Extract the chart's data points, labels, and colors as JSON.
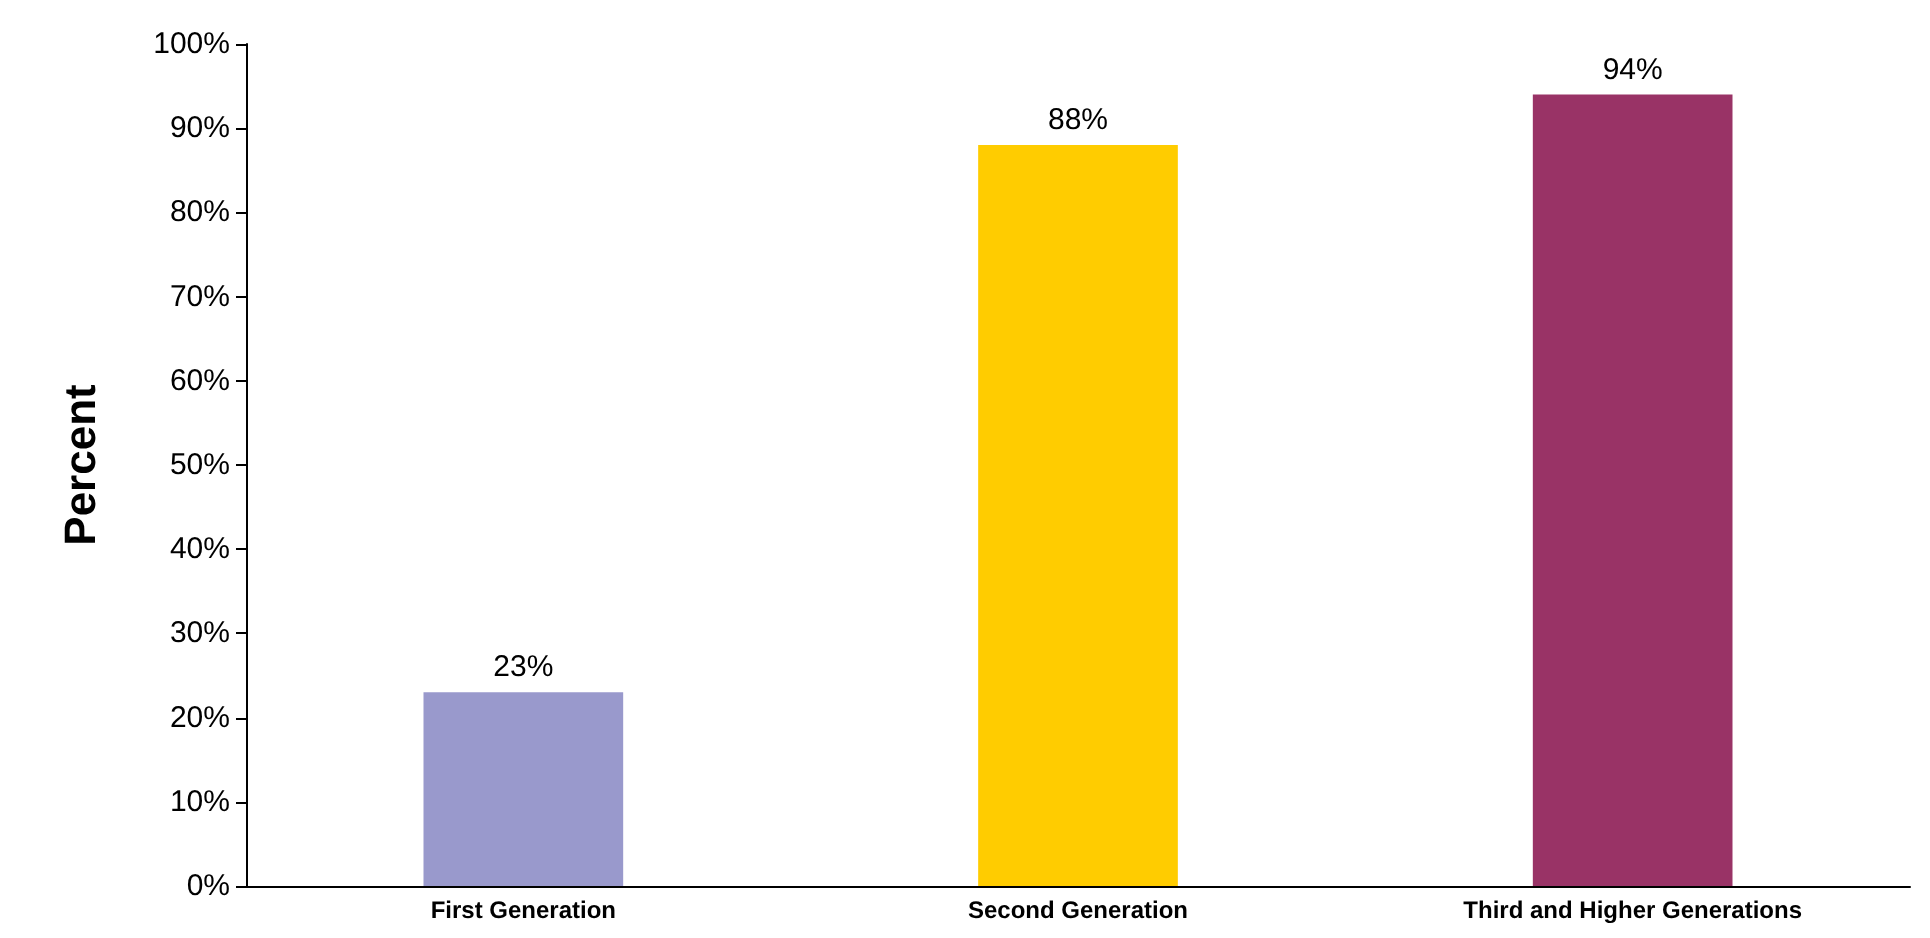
{
  "chart_data": {
    "type": "bar",
    "ylabel": "Percent",
    "categories": [
      "First Generation",
      "Second Generation",
      "Third and Higher Generations"
    ],
    "values": [
      23,
      88,
      94
    ],
    "colors": [
      "#9999cc",
      "#ffcc00",
      "#993366"
    ],
    "value_labels": [
      "23%",
      "88%",
      "94%"
    ],
    "ylim": [
      0,
      100
    ],
    "yticks": [
      {
        "value": 0,
        "label": "0%"
      },
      {
        "value": 10,
        "label": "10%"
      },
      {
        "value": 20,
        "label": "20%"
      },
      {
        "value": 30,
        "label": "30%"
      },
      {
        "value": 40,
        "label": "40%"
      },
      {
        "value": 50,
        "label": "50%"
      },
      {
        "value": 60,
        "label": "60%"
      },
      {
        "value": 70,
        "label": "70%"
      },
      {
        "value": 80,
        "label": "80%"
      },
      {
        "value": 90,
        "label": "90%"
      },
      {
        "value": 100,
        "label": "100%"
      }
    ],
    "grid": false
  }
}
